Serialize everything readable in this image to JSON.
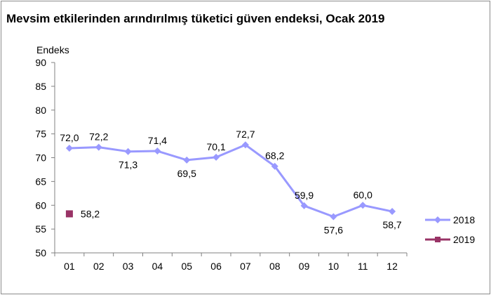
{
  "colors": {
    "series_2018": "#9999ff",
    "series_2019": "#993366",
    "axis": "#808080"
  },
  "chart_data": {
    "type": "line",
    "title": "Mevsim etkilerinden arındırılmış tüketici güven endeksi, Ocak 2019",
    "xlabel": "",
    "ylabel": "Endeks",
    "categories": [
      "01",
      "02",
      "03",
      "04",
      "05",
      "06",
      "07",
      "08",
      "09",
      "10",
      "11",
      "12"
    ],
    "ylim": [
      50,
      90
    ],
    "yticks": [
      "50",
      "55",
      "60",
      "65",
      "70",
      "75",
      "80",
      "85",
      "90"
    ],
    "grid": false,
    "legend_position": "right",
    "series": [
      {
        "name": "2018",
        "values": [
          72.0,
          72.2,
          71.3,
          71.4,
          69.5,
          70.1,
          72.7,
          68.2,
          59.9,
          57.6,
          60.0,
          58.7
        ],
        "labels": [
          "72,0",
          "72,2",
          "71,3",
          "71,4",
          "69,5",
          "70,1",
          "72,7",
          "68,2",
          "59,9",
          "57,6",
          "60,0",
          "58,7"
        ],
        "marker": "diamond"
      },
      {
        "name": "2019",
        "values": [
          58.2,
          null,
          null,
          null,
          null,
          null,
          null,
          null,
          null,
          null,
          null,
          null
        ],
        "labels": [
          "58,2",
          "",
          "",
          "",
          "",
          "",
          "",
          "",
          "",
          "",
          "",
          ""
        ],
        "marker": "square"
      }
    ]
  }
}
